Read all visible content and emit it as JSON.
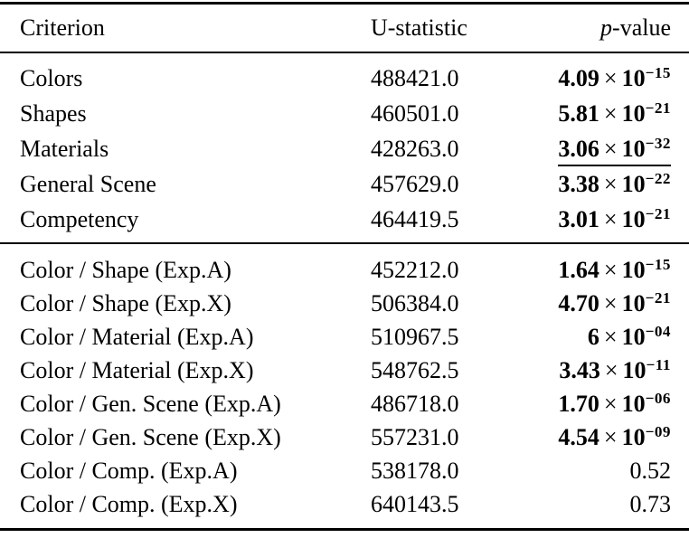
{
  "meta": {
    "text_color": "#000000",
    "background_color": "#ffffff"
  },
  "table": {
    "header": {
      "criterion": "Criterion",
      "u_statistic": "U-statistic",
      "p_value": {
        "italic": "p",
        "rest": "-value"
      }
    },
    "times_symbol": "×",
    "base": "10",
    "sections": [
      {
        "name": "individual-criteria",
        "rows": [
          {
            "criterion": "Colors",
            "u": "488421.0",
            "p": {
              "mantissa": "4.09",
              "exponent": "−15",
              "bold": true,
              "underline": false
            }
          },
          {
            "criterion": "Shapes",
            "u": "460501.0",
            "p": {
              "mantissa": "5.81",
              "exponent": "−21",
              "bold": true,
              "underline": false
            }
          },
          {
            "criterion": "Materials",
            "u": "428263.0",
            "p": {
              "mantissa": "3.06",
              "exponent": "−32",
              "bold": true,
              "underline": true
            }
          },
          {
            "criterion": "General Scene",
            "u": "457629.0",
            "p": {
              "mantissa": "3.38",
              "exponent": "−22",
              "bold": true,
              "underline": false
            }
          },
          {
            "criterion": "Competency",
            "u": "464419.5",
            "p": {
              "mantissa": "3.01",
              "exponent": "−21",
              "bold": true,
              "underline": false
            }
          }
        ]
      },
      {
        "name": "pairwise-comparisons",
        "rows": [
          {
            "criterion": "Color / Shape (Exp.A)",
            "u": "452212.0",
            "p": {
              "mantissa": "1.64",
              "exponent": "−15",
              "bold": true,
              "underline": false
            }
          },
          {
            "criterion": "Color / Shape (Exp.X)",
            "u": "506384.0",
            "p": {
              "mantissa": "4.70",
              "exponent": "−21",
              "bold": true,
              "underline": false
            }
          },
          {
            "criterion": "Color / Material (Exp.A)",
            "u": "510967.5",
            "p": {
              "mantissa": "6",
              "exponent": "−04",
              "bold": true,
              "underline": false
            }
          },
          {
            "criterion": "Color / Material (Exp.X)",
            "u": "548762.5",
            "p": {
              "mantissa": "3.43",
              "exponent": "−11",
              "bold": true,
              "underline": false
            }
          },
          {
            "criterion": "Color / Gen. Scene (Exp.A)",
            "u": "486718.0",
            "p": {
              "mantissa": "1.70",
              "exponent": "−06",
              "bold": true,
              "underline": false
            }
          },
          {
            "criterion": "Color / Gen. Scene (Exp.X)",
            "u": "557231.0",
            "p": {
              "mantissa": "4.54",
              "exponent": "−09",
              "bold": true,
              "underline": false
            }
          },
          {
            "criterion": "Color / Comp. (Exp.A)",
            "u": "538178.0",
            "p": {
              "value": "0.52",
              "bold": false,
              "underline": false
            }
          },
          {
            "criterion": "Color / Comp. (Exp.X)",
            "u": "640143.5",
            "p": {
              "value": "0.73",
              "bold": false,
              "underline": false
            }
          }
        ]
      }
    ]
  }
}
